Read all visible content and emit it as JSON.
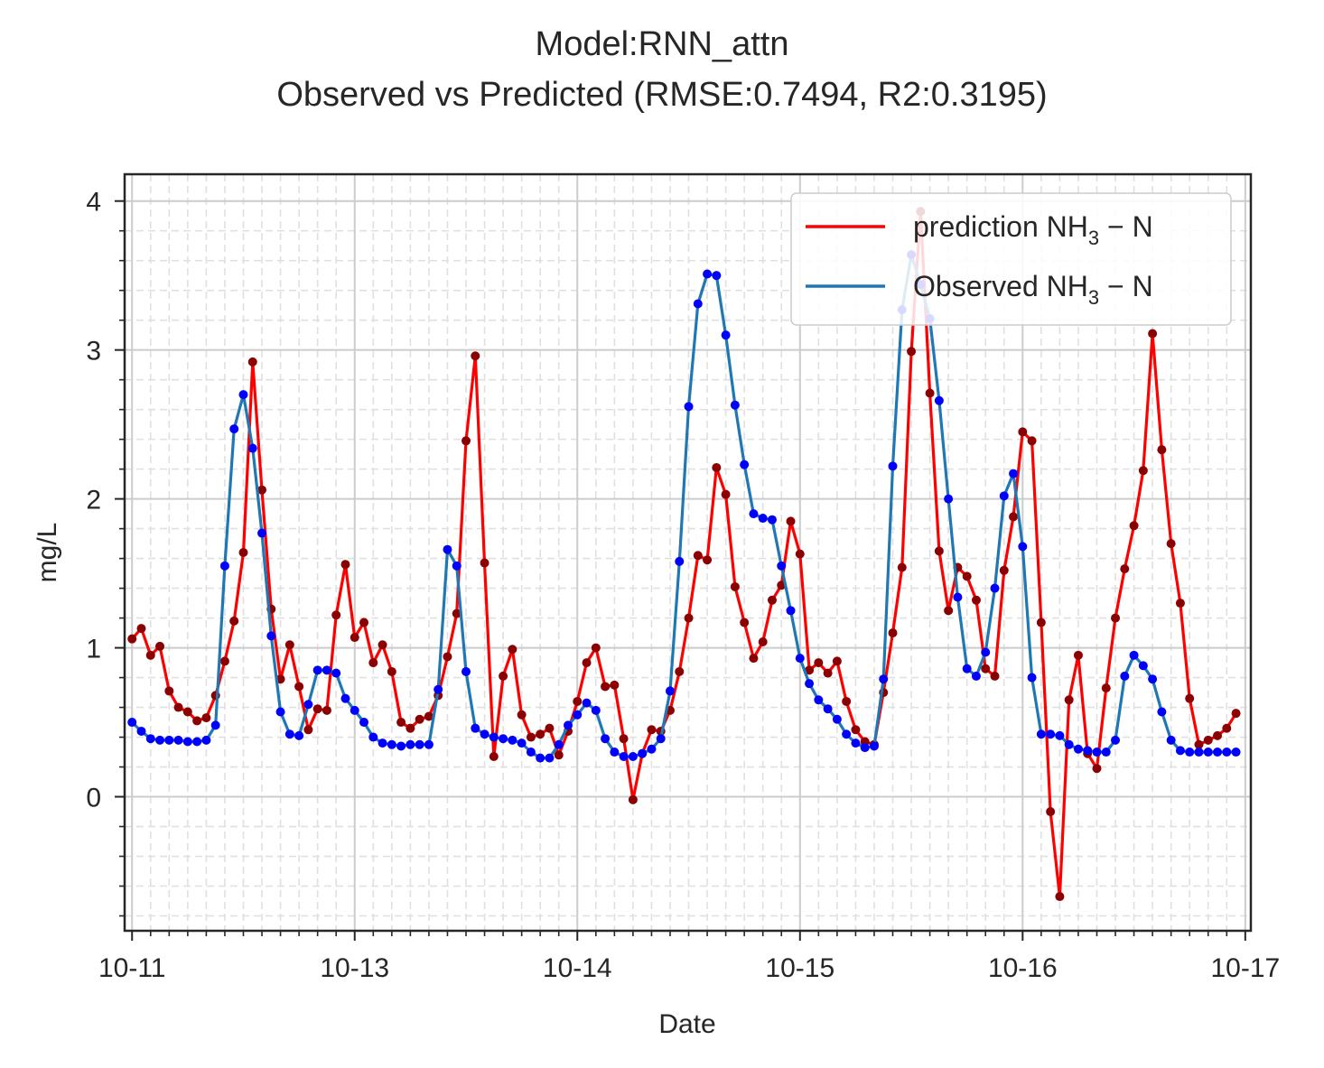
{
  "chart_data": {
    "type": "line",
    "title_lines": [
      "Model:RNN_attn",
      "Observed vs Predicted (RMSE:0.7494, R2:0.3195)"
    ],
    "xlabel": "Date",
    "ylabel": "mg/L",
    "xlim": [
      -0.04,
      6.03
    ],
    "ylim": [
      -0.9,
      4.18
    ],
    "x_ticks": [
      {
        "pos": 0,
        "label": "10-11"
      },
      {
        "pos": 1.2,
        "label": "10-13"
      },
      {
        "pos": 2.4,
        "label": "10-14"
      },
      {
        "pos": 3.6,
        "label": "10-15"
      },
      {
        "pos": 4.8,
        "label": "10-16"
      },
      {
        "pos": 6.0,
        "label": "10-17"
      }
    ],
    "y_ticks": [
      0,
      1,
      2,
      3,
      4
    ],
    "grid": true,
    "legend_position": "upper right",
    "x_step": 0.05,
    "series": [
      {
        "name": "prediction",
        "legend_main": "prediction NH",
        "legend_sub": "3",
        "legend_tail": " − N",
        "color": "#ff0000",
        "marker_color": "#8b0000",
        "values": [
          1.06,
          1.13,
          0.95,
          1.01,
          0.71,
          0.6,
          0.57,
          0.51,
          0.53,
          0.68,
          0.91,
          1.18,
          1.64,
          2.92,
          2.06,
          1.26,
          0.79,
          1.02,
          0.74,
          0.45,
          0.59,
          0.58,
          1.22,
          1.56,
          1.07,
          1.17,
          0.9,
          1.02,
          0.84,
          0.5,
          0.46,
          0.52,
          0.54,
          0.68,
          0.94,
          1.23,
          2.39,
          2.96,
          1.57,
          0.27,
          0.81,
          0.99,
          0.55,
          0.4,
          0.42,
          0.46,
          0.28,
          0.44,
          0.64,
          0.9,
          1.0,
          0.74,
          0.75,
          0.39,
          -0.02,
          0.29,
          0.45,
          0.44,
          0.58,
          0.84,
          1.2,
          1.62,
          1.59,
          2.21,
          2.03,
          1.41,
          1.17,
          0.93,
          1.04,
          1.32,
          1.42,
          1.85,
          1.63,
          0.85,
          0.9,
          0.83,
          0.91,
          0.64,
          0.45,
          0.37,
          0.35,
          0.7,
          1.1,
          1.54,
          2.99,
          3.93,
          2.71,
          1.65,
          1.25,
          1.54,
          1.48,
          1.32,
          0.86,
          0.81,
          1.52,
          1.88,
          2.45,
          2.39,
          1.17,
          -0.1,
          -0.67,
          0.65,
          0.95,
          0.29,
          0.19,
          0.73,
          1.2,
          1.53,
          1.82,
          2.19,
          3.11,
          2.33,
          1.7,
          1.3,
          0.66,
          0.35,
          0.38,
          0.41,
          0.46,
          0.56
        ]
      },
      {
        "name": "Observed",
        "legend_main": "Observed NH",
        "legend_sub": "3",
        "legend_tail": " − N",
        "color": "#1f77b4",
        "marker_color": "#0000ff",
        "values": [
          0.5,
          0.44,
          0.39,
          0.38,
          0.38,
          0.38,
          0.37,
          0.37,
          0.38,
          0.48,
          1.55,
          2.47,
          2.7,
          2.34,
          1.77,
          1.08,
          0.57,
          0.42,
          0.41,
          0.62,
          0.85,
          0.85,
          0.83,
          0.66,
          0.58,
          0.5,
          0.4,
          0.36,
          0.35,
          0.34,
          0.35,
          0.35,
          0.35,
          0.72,
          1.66,
          1.55,
          0.84,
          0.46,
          0.42,
          0.4,
          0.39,
          0.38,
          0.36,
          0.3,
          0.26,
          0.26,
          0.35,
          0.48,
          0.55,
          0.63,
          0.58,
          0.39,
          0.3,
          0.27,
          0.27,
          0.29,
          0.32,
          0.39,
          0.71,
          1.58,
          2.62,
          3.31,
          3.51,
          3.5,
          3.1,
          2.63,
          2.23,
          1.9,
          1.87,
          1.86,
          1.55,
          1.25,
          0.93,
          0.76,
          0.65,
          0.59,
          0.52,
          0.42,
          0.36,
          0.33,
          0.34,
          0.79,
          2.22,
          3.27,
          3.64,
          3.44,
          3.21,
          2.66,
          2.0,
          1.34,
          0.86,
          0.81,
          0.97,
          1.4,
          2.02,
          2.17,
          1.68,
          0.8,
          0.42,
          0.42,
          0.41,
          0.35,
          0.32,
          0.31,
          0.3,
          0.3,
          0.38,
          0.81,
          0.95,
          0.88,
          0.79,
          0.57,
          0.38,
          0.31,
          0.3,
          0.3,
          0.3,
          0.3,
          0.3,
          0.3
        ]
      }
    ]
  }
}
